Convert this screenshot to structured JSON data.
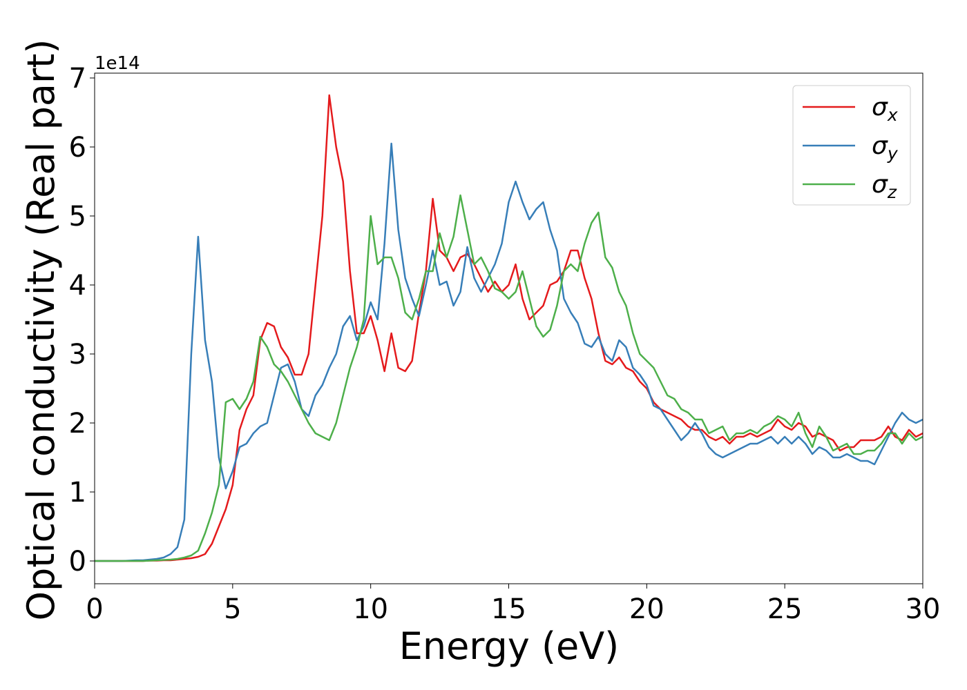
{
  "chart_data": {
    "type": "line",
    "xlabel": "Energy (eV)",
    "ylabel": "Optical conductivity (Real part)",
    "y_offset_label": "1e14",
    "x": [
      0,
      0.25,
      0.5,
      0.75,
      1,
      1.25,
      1.5,
      1.75,
      2,
      2.25,
      2.5,
      2.75,
      3,
      3.25,
      3.5,
      3.75,
      4,
      4.25,
      4.5,
      4.75,
      5,
      5.25,
      5.5,
      5.75,
      6,
      6.25,
      6.5,
      6.75,
      7,
      7.25,
      7.5,
      7.75,
      8,
      8.25,
      8.5,
      8.75,
      9,
      9.25,
      9.5,
      9.75,
      10,
      10.25,
      10.5,
      10.75,
      11,
      11.25,
      11.5,
      11.75,
      12,
      12.25,
      12.5,
      12.75,
      13,
      13.25,
      13.5,
      13.75,
      14,
      14.25,
      14.5,
      14.75,
      15,
      15.25,
      15.5,
      15.75,
      16,
      16.25,
      16.5,
      16.75,
      17,
      17.25,
      17.5,
      17.75,
      18,
      18.25,
      18.5,
      18.75,
      19,
      19.25,
      19.5,
      19.75,
      20,
      20.25,
      20.5,
      20.75,
      21,
      21.25,
      21.5,
      21.75,
      22,
      22.25,
      22.5,
      22.75,
      23,
      23.25,
      23.5,
      23.75,
      24,
      24.25,
      24.5,
      24.75,
      25,
      25.25,
      25.5,
      25.75,
      26,
      26.25,
      26.5,
      26.75,
      27,
      27.25,
      27.5,
      27.75,
      28,
      28.25,
      28.5,
      28.75,
      29,
      29.25,
      29.5,
      29.75,
      30
    ],
    "series": [
      {
        "name": "σx",
        "color": "#e41a1c",
        "values": [
          0,
          0,
          0,
          0,
          0,
          0,
          0,
          0,
          0.005,
          0.005,
          0.01,
          0.01,
          0.02,
          0.03,
          0.04,
          0.06,
          0.1,
          0.25,
          0.5,
          0.75,
          1.1,
          1.9,
          2.2,
          2.4,
          3.2,
          3.45,
          3.4,
          3.1,
          2.95,
          2.7,
          2.7,
          3.0,
          4.0,
          5.0,
          6.75,
          6.0,
          5.5,
          4.2,
          3.3,
          3.3,
          3.55,
          3.2,
          2.75,
          3.3,
          2.8,
          2.75,
          2.9,
          3.6,
          4.2,
          5.25,
          4.5,
          4.4,
          4.2,
          4.4,
          4.45,
          4.3,
          4.1,
          3.9,
          4.05,
          3.9,
          4.0,
          4.3,
          3.8,
          3.5,
          3.6,
          3.7,
          4.0,
          4.05,
          4.2,
          4.5,
          4.5,
          4.1,
          3.8,
          3.3,
          2.9,
          2.85,
          2.95,
          2.8,
          2.75,
          2.6,
          2.5,
          2.3,
          2.2,
          2.15,
          2.1,
          2.05,
          1.95,
          1.9,
          1.9,
          1.8,
          1.75,
          1.8,
          1.7,
          1.8,
          1.8,
          1.85,
          1.8,
          1.85,
          1.9,
          2.05,
          1.95,
          1.9,
          2.0,
          1.95,
          1.8,
          1.85,
          1.8,
          1.75,
          1.6,
          1.65,
          1.65,
          1.75,
          1.75,
          1.75,
          1.8,
          1.95,
          1.8,
          1.75,
          1.9,
          1.8,
          1.85
        ]
      },
      {
        "name": "σy",
        "color": "#377eb8",
        "values": [
          0,
          0,
          0,
          0,
          0,
          0.005,
          0.01,
          0.01,
          0.02,
          0.03,
          0.05,
          0.1,
          0.2,
          0.6,
          3.0,
          4.7,
          3.2,
          2.6,
          1.5,
          1.05,
          1.3,
          1.65,
          1.7,
          1.85,
          1.95,
          2.0,
          2.4,
          2.8,
          2.85,
          2.6,
          2.2,
          2.1,
          2.4,
          2.55,
          2.8,
          3.0,
          3.4,
          3.55,
          3.2,
          3.4,
          3.75,
          3.5,
          4.6,
          6.05,
          4.8,
          4.1,
          3.8,
          3.55,
          4.0,
          4.5,
          4.0,
          4.05,
          3.7,
          3.9,
          4.55,
          4.1,
          3.9,
          4.1,
          4.3,
          4.6,
          5.2,
          5.5,
          5.2,
          4.95,
          5.1,
          5.2,
          4.8,
          4.5,
          3.8,
          3.6,
          3.45,
          3.15,
          3.1,
          3.25,
          3.0,
          2.9,
          3.2,
          3.1,
          2.8,
          2.7,
          2.55,
          2.25,
          2.2,
          2.05,
          1.9,
          1.75,
          1.85,
          2.0,
          1.85,
          1.65,
          1.55,
          1.5,
          1.55,
          1.6,
          1.65,
          1.7,
          1.7,
          1.75,
          1.8,
          1.7,
          1.8,
          1.7,
          1.8,
          1.7,
          1.55,
          1.65,
          1.6,
          1.5,
          1.5,
          1.55,
          1.5,
          1.45,
          1.45,
          1.4,
          1.6,
          1.8,
          2.0,
          2.15,
          2.05,
          2.0,
          2.05
        ]
      },
      {
        "name": "σz",
        "color": "#4daf4a",
        "values": [
          0,
          0,
          0,
          0,
          0,
          0,
          0,
          0,
          0.005,
          0.01,
          0.015,
          0.02,
          0.03,
          0.05,
          0.08,
          0.15,
          0.4,
          0.7,
          1.1,
          2.3,
          2.35,
          2.2,
          2.35,
          2.6,
          3.25,
          3.1,
          2.85,
          2.75,
          2.6,
          2.4,
          2.2,
          2.0,
          1.85,
          1.8,
          1.75,
          2.0,
          2.4,
          2.8,
          3.1,
          3.5,
          5.0,
          4.3,
          4.4,
          4.4,
          4.1,
          3.6,
          3.5,
          3.8,
          4.2,
          4.2,
          4.75,
          4.4,
          4.7,
          5.3,
          4.8,
          4.3,
          4.4,
          4.2,
          3.95,
          3.9,
          3.8,
          3.9,
          4.2,
          3.8,
          3.4,
          3.25,
          3.35,
          3.7,
          4.2,
          4.3,
          4.2,
          4.6,
          4.9,
          5.05,
          4.4,
          4.25,
          3.9,
          3.7,
          3.3,
          3.0,
          2.9,
          2.8,
          2.6,
          2.4,
          2.35,
          2.2,
          2.15,
          2.05,
          2.05,
          1.85,
          1.9,
          1.95,
          1.75,
          1.85,
          1.85,
          1.9,
          1.85,
          1.95,
          2.0,
          2.1,
          2.05,
          1.95,
          2.15,
          1.85,
          1.65,
          1.95,
          1.8,
          1.6,
          1.65,
          1.7,
          1.55,
          1.55,
          1.6,
          1.6,
          1.7,
          1.85,
          1.85,
          1.7,
          1.85,
          1.75,
          1.8
        ]
      }
    ],
    "xlim": [
      0,
      30
    ],
    "xticks": [
      0,
      5,
      10,
      15,
      20,
      25,
      30
    ],
    "ylim": [
      -0.33,
      7.07
    ],
    "yticks": [
      0,
      1,
      2,
      3,
      4,
      5,
      6,
      7
    ],
    "grid": false,
    "legend": "upper right"
  }
}
